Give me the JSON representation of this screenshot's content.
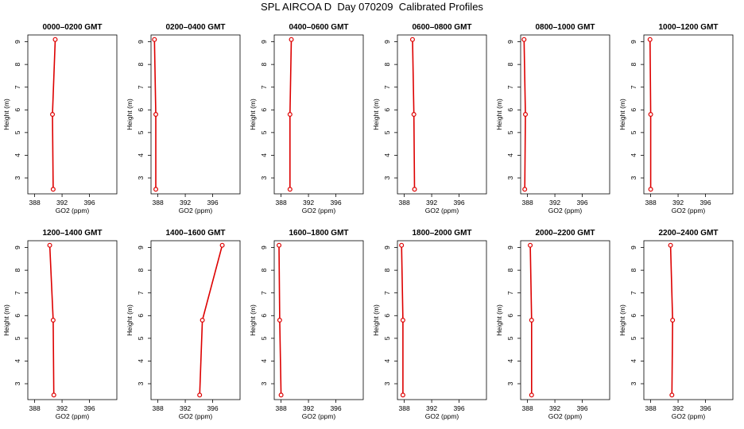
{
  "figure": {
    "title": "SPL AIRCOA D  Day 070209  Calibrated Profiles"
  },
  "chart_data": [
    {
      "type": "line",
      "title": "0000–0200 GMT",
      "xlabel": "GO2 (ppm)",
      "ylabel": "Height (m)",
      "xlim": [
        387,
        400
      ],
      "ylim": [
        2.3,
        9.3
      ],
      "xticks": [
        388,
        392,
        396
      ],
      "yticks": [
        3,
        4,
        5,
        6,
        7,
        8,
        9
      ],
      "grid": false,
      "series": [
        {
          "color": "#dd0000",
          "points": [
            {
              "x": 390.7,
              "y": 2.5
            },
            {
              "x": 390.6,
              "y": 5.8
            },
            {
              "x": 391.0,
              "y": 9.1
            }
          ]
        }
      ]
    },
    {
      "type": "line",
      "title": "0200–0400 GMT",
      "xlabel": "GO2 (ppm)",
      "ylabel": "Height (m)",
      "xlim": [
        387,
        400
      ],
      "ylim": [
        2.3,
        9.3
      ],
      "xticks": [
        388,
        392,
        396
      ],
      "yticks": [
        3,
        4,
        5,
        6,
        7,
        8,
        9
      ],
      "grid": false,
      "series": [
        {
          "color": "#dd0000",
          "points": [
            {
              "x": 387.7,
              "y": 2.5
            },
            {
              "x": 387.7,
              "y": 5.8
            },
            {
              "x": 387.5,
              "y": 9.1
            }
          ]
        }
      ]
    },
    {
      "type": "line",
      "title": "0400–0600 GMT",
      "xlabel": "GO2 (ppm)",
      "ylabel": "Height (m)",
      "xlim": [
        387,
        400
      ],
      "ylim": [
        2.3,
        9.3
      ],
      "xticks": [
        388,
        392,
        396
      ],
      "yticks": [
        3,
        4,
        5,
        6,
        7,
        8,
        9
      ],
      "grid": false,
      "series": [
        {
          "color": "#dd0000",
          "points": [
            {
              "x": 389.3,
              "y": 2.5
            },
            {
              "x": 389.3,
              "y": 5.8
            },
            {
              "x": 389.5,
              "y": 9.1
            }
          ]
        }
      ]
    },
    {
      "type": "line",
      "title": "0600–0800 GMT",
      "xlabel": "GO2 (ppm)",
      "ylabel": "Height (m)",
      "xlim": [
        387,
        400
      ],
      "ylim": [
        2.3,
        9.3
      ],
      "xticks": [
        388,
        392,
        396
      ],
      "yticks": [
        3,
        4,
        5,
        6,
        7,
        8,
        9
      ],
      "grid": false,
      "series": [
        {
          "color": "#dd0000",
          "points": [
            {
              "x": 389.5,
              "y": 2.5
            },
            {
              "x": 389.4,
              "y": 5.8
            },
            {
              "x": 389.2,
              "y": 9.1
            }
          ]
        }
      ]
    },
    {
      "type": "line",
      "title": "0800–1000 GMT",
      "xlabel": "GO2 (ppm)",
      "ylabel": "Height (m)",
      "xlim": [
        387,
        400
      ],
      "ylim": [
        2.3,
        9.3
      ],
      "xticks": [
        388,
        392,
        396
      ],
      "yticks": [
        3,
        4,
        5,
        6,
        7,
        8,
        9
      ],
      "grid": false,
      "series": [
        {
          "color": "#dd0000",
          "points": [
            {
              "x": 387.6,
              "y": 2.5
            },
            {
              "x": 387.7,
              "y": 5.8
            },
            {
              "x": 387.5,
              "y": 9.1
            }
          ]
        }
      ]
    },
    {
      "type": "line",
      "title": "1000–1200 GMT",
      "xlabel": "GO2 (ppm)",
      "ylabel": "Height (m)",
      "xlim": [
        387,
        400
      ],
      "ylim": [
        2.3,
        9.3
      ],
      "xticks": [
        388,
        392,
        396
      ],
      "yticks": [
        3,
        4,
        5,
        6,
        7,
        8,
        9
      ],
      "grid": false,
      "series": [
        {
          "color": "#dd0000",
          "points": [
            {
              "x": 388.0,
              "y": 2.5
            },
            {
              "x": 388.0,
              "y": 5.8
            },
            {
              "x": 387.9,
              "y": 9.1
            }
          ]
        }
      ]
    },
    {
      "type": "line",
      "title": "1200–1400 GMT",
      "xlabel": "GO2 (ppm)",
      "ylabel": "Height (m)",
      "xlim": [
        387,
        400
      ],
      "ylim": [
        2.3,
        9.3
      ],
      "xticks": [
        388,
        392,
        396
      ],
      "yticks": [
        3,
        4,
        5,
        6,
        7,
        8,
        9
      ],
      "grid": false,
      "series": [
        {
          "color": "#dd0000",
          "points": [
            {
              "x": 390.8,
              "y": 2.5
            },
            {
              "x": 390.7,
              "y": 5.8
            },
            {
              "x": 390.2,
              "y": 9.1
            }
          ]
        }
      ]
    },
    {
      "type": "line",
      "title": "1400–1600 GMT",
      "xlabel": "GO2 (ppm)",
      "ylabel": "Height (m)",
      "xlim": [
        387,
        400
      ],
      "ylim": [
        2.3,
        9.3
      ],
      "xticks": [
        388,
        392,
        396
      ],
      "yticks": [
        3,
        4,
        5,
        6,
        7,
        8,
        9
      ],
      "grid": false,
      "series": [
        {
          "color": "#dd0000",
          "points": [
            {
              "x": 394.1,
              "y": 2.5
            },
            {
              "x": 394.5,
              "y": 5.8
            },
            {
              "x": 397.4,
              "y": 9.1
            }
          ]
        }
      ]
    },
    {
      "type": "line",
      "title": "1600–1800 GMT",
      "xlabel": "GO2 (ppm)",
      "ylabel": "Height (m)",
      "xlim": [
        387,
        400
      ],
      "ylim": [
        2.3,
        9.3
      ],
      "xticks": [
        388,
        392,
        396
      ],
      "yticks": [
        3,
        4,
        5,
        6,
        7,
        8,
        9
      ],
      "grid": false,
      "series": [
        {
          "color": "#dd0000",
          "points": [
            {
              "x": 388.0,
              "y": 2.5
            },
            {
              "x": 387.8,
              "y": 5.8
            },
            {
              "x": 387.7,
              "y": 9.1
            }
          ]
        }
      ]
    },
    {
      "type": "line",
      "title": "1800–2000 GMT",
      "xlabel": "GO2 (ppm)",
      "ylabel": "Height (m)",
      "xlim": [
        387,
        400
      ],
      "ylim": [
        2.3,
        9.3
      ],
      "xticks": [
        388,
        392,
        396
      ],
      "yticks": [
        3,
        4,
        5,
        6,
        7,
        8,
        9
      ],
      "grid": false,
      "series": [
        {
          "color": "#dd0000",
          "points": [
            {
              "x": 387.8,
              "y": 2.5
            },
            {
              "x": 387.8,
              "y": 5.8
            },
            {
              "x": 387.6,
              "y": 9.1
            }
          ]
        }
      ]
    },
    {
      "type": "line",
      "title": "2000–2200 GMT",
      "xlabel": "GO2 (ppm)",
      "ylabel": "Height (m)",
      "xlim": [
        387,
        400
      ],
      "ylim": [
        2.3,
        9.3
      ],
      "xticks": [
        388,
        392,
        396
      ],
      "yticks": [
        3,
        4,
        5,
        6,
        7,
        8,
        9
      ],
      "grid": false,
      "series": [
        {
          "color": "#dd0000",
          "points": [
            {
              "x": 388.6,
              "y": 2.5
            },
            {
              "x": 388.6,
              "y": 5.8
            },
            {
              "x": 388.4,
              "y": 9.1
            }
          ]
        }
      ]
    },
    {
      "type": "line",
      "title": "2200–2400 GMT",
      "xlabel": "GO2 (ppm)",
      "ylabel": "Height (m)",
      "xlim": [
        387,
        400
      ],
      "ylim": [
        2.3,
        9.3
      ],
      "xticks": [
        388,
        392,
        396
      ],
      "yticks": [
        3,
        4,
        5,
        6,
        7,
        8,
        9
      ],
      "grid": false,
      "series": [
        {
          "color": "#dd0000",
          "points": [
            {
              "x": 391.1,
              "y": 2.5
            },
            {
              "x": 391.2,
              "y": 5.8
            },
            {
              "x": 390.9,
              "y": 9.1
            }
          ]
        }
      ]
    }
  ]
}
